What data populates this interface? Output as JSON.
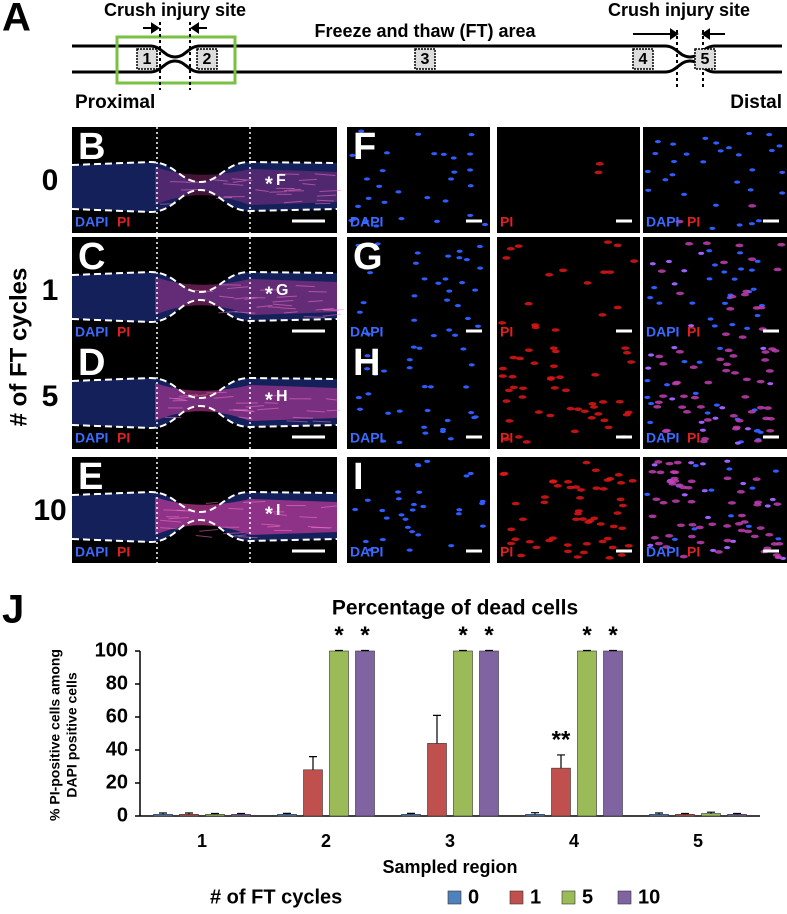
{
  "panel_a": {
    "label": "A",
    "left_title": "Crush injury site",
    "middle_title": "Freeze and thaw (FT) area",
    "right_title": "Crush injury site",
    "regions": [
      "1",
      "2",
      "3",
      "4",
      "5"
    ],
    "proximal": "Proximal",
    "distal": "Distal"
  },
  "micrographs": {
    "y_title": "# of FT cycles",
    "stain_dapi": "DAPI",
    "stain_pi": "PI",
    "marker": "*",
    "rows": [
      {
        "cycles": "0",
        "overview_label": "B",
        "detail_label": "F"
      },
      {
        "cycles": "1",
        "overview_label": "C",
        "detail_label": "G"
      },
      {
        "cycles": "5",
        "overview_label": "D",
        "detail_label": "H"
      },
      {
        "cycles": "10",
        "overview_label": "E",
        "detail_label": "I"
      }
    ]
  },
  "chart_data": {
    "type": "bar",
    "label": "J",
    "title": "Percentage of dead cells",
    "y_label": [
      "% PI-positive cells among",
      "DAPI positive cells"
    ],
    "x_label": "Sampled region",
    "legend_title": "# of FT cycles",
    "categories": [
      "1",
      "2",
      "3",
      "4",
      "5"
    ],
    "series": [
      {
        "name": "0",
        "color": "#4f81bd",
        "values": [
          1,
          1,
          1,
          1,
          1
        ],
        "errors": [
          0.8,
          0.6,
          0.6,
          1,
          0.8
        ]
      },
      {
        "name": "1",
        "color": "#c0504d",
        "values": [
          1,
          28,
          44,
          29,
          1
        ],
        "errors": [
          0.8,
          8,
          17,
          8,
          0.5
        ],
        "significance": [
          null,
          null,
          null,
          "**",
          null
        ]
      },
      {
        "name": "5",
        "color": "#9bbb59",
        "values": [
          1,
          100,
          100,
          100,
          1.5
        ],
        "errors": [
          0.5,
          0.3,
          0.3,
          0.3,
          0.8
        ],
        "significance": [
          null,
          "*",
          "*",
          "*",
          null
        ]
      },
      {
        "name": "10",
        "color": "#8064a2",
        "values": [
          1,
          100,
          100,
          100,
          1
        ],
        "errors": [
          0.5,
          0.3,
          0.3,
          0.3,
          0.5
        ],
        "significance": [
          null,
          "*",
          "*",
          "*",
          null
        ]
      }
    ],
    "ylim": [
      0,
      100
    ],
    "yticks": [
      0,
      20,
      40,
      60,
      80,
      100
    ],
    "grid": false,
    "legend": "bottom"
  }
}
